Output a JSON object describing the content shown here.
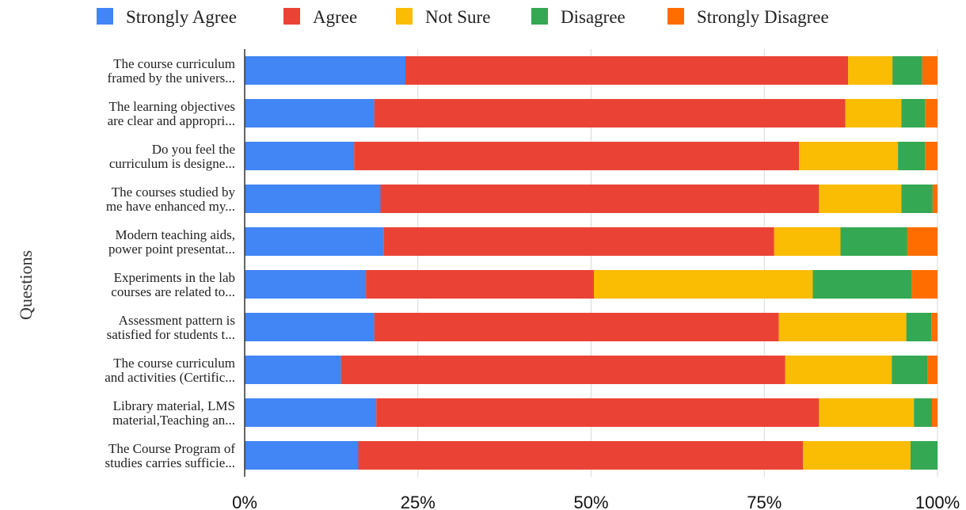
{
  "chart_data": {
    "type": "bar",
    "orientation": "horizontal",
    "stacked": "percent",
    "ylabel": "Questions",
    "xlabel": "",
    "xlim": [
      0,
      100
    ],
    "x_ticks": [
      "0%",
      "25%",
      "50%",
      "75%",
      "100%"
    ],
    "legend_position": "top",
    "grid": true,
    "categories": [
      [
        "The course curriculum",
        "framed by the univers..."
      ],
      [
        "The learning objectives",
        "are clear and appropri..."
      ],
      [
        "Do you feel the",
        "curriculum is designe..."
      ],
      [
        "The courses studied by",
        "me have enhanced my..."
      ],
      [
        "Modern teaching aids,",
        "power point presentat..."
      ],
      [
        "Experiments in the lab",
        "courses are related to..."
      ],
      [
        "Assessment pattern is",
        "satisfied for students t..."
      ],
      [
        "The course curriculum",
        "and activities (Certific..."
      ],
      [
        "Library material, LMS",
        "material,Teaching an..."
      ],
      [
        "The Course Program of",
        "studies carries sufficie..."
      ]
    ],
    "series": [
      {
        "name": "Strongly Agree",
        "color": "#4285f4",
        "values": [
          23.2,
          18.7,
          15.8,
          19.6,
          20.1,
          17.5,
          18.7,
          13.9,
          19.0,
          16.4
        ]
      },
      {
        "name": "Agree",
        "color": "#ea4335",
        "values": [
          63.9,
          68.0,
          64.2,
          63.3,
          56.3,
          32.9,
          58.4,
          64.1,
          63.9,
          64.2
        ]
      },
      {
        "name": "Not Sure",
        "color": "#fbbc04",
        "values": [
          6.4,
          8.1,
          14.3,
          11.9,
          9.6,
          31.6,
          18.4,
          15.4,
          13.7,
          15.5
        ]
      },
      {
        "name": "Disagree",
        "color": "#34a853",
        "values": [
          4.3,
          3.4,
          3.9,
          4.5,
          9.6,
          14.3,
          3.6,
          5.2,
          2.6,
          3.9
        ]
      },
      {
        "name": "Strongly Disagree",
        "color": "#ff6d01",
        "values": [
          2.2,
          1.8,
          1.8,
          0.7,
          4.4,
          3.7,
          0.9,
          1.4,
          0.8,
          0.0
        ]
      }
    ]
  }
}
